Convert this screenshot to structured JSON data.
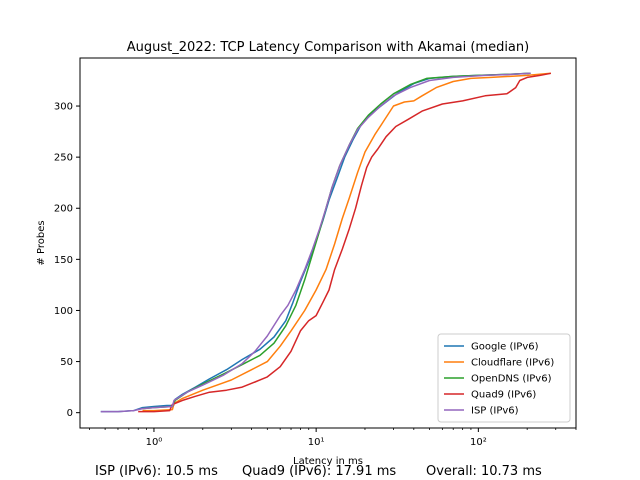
{
  "chart_data": {
    "type": "line",
    "title": "August_2022: TCP Latency Comparison with Akamai (median)",
    "xlabel": "Latency in ms",
    "ylabel": "# Probes",
    "x_scale": "log",
    "xlim": [
      0.35,
      400
    ],
    "ylim": [
      -15,
      347
    ],
    "x_ticks": [
      {
        "value": 1,
        "label": "10⁰"
      },
      {
        "value": 10,
        "label": "10¹"
      },
      {
        "value": 100,
        "label": "10²"
      }
    ],
    "y_ticks": [
      0,
      50,
      100,
      150,
      200,
      250,
      300
    ],
    "legend_position": "lower right",
    "grid": false,
    "series": [
      {
        "name": "Google (IPv6)",
        "color": "#1f77b4",
        "points": [
          [
            0.47,
            1
          ],
          [
            0.6,
            1
          ],
          [
            0.75,
            2
          ],
          [
            0.85,
            5
          ],
          [
            1,
            6
          ],
          [
            1.2,
            7
          ],
          [
            1.32,
            7
          ],
          [
            1.35,
            13
          ],
          [
            1.5,
            18
          ],
          [
            1.8,
            25
          ],
          [
            2.2,
            33
          ],
          [
            2.8,
            42
          ],
          [
            3.5,
            52
          ],
          [
            4.5,
            62
          ],
          [
            5.5,
            74
          ],
          [
            6.5,
            90
          ],
          [
            7.2,
            108
          ],
          [
            8,
            128
          ],
          [
            9,
            148
          ],
          [
            10,
            168
          ],
          [
            11,
            188
          ],
          [
            12,
            208
          ],
          [
            13.5,
            230
          ],
          [
            15,
            250
          ],
          [
            17,
            268
          ],
          [
            19,
            282
          ],
          [
            22,
            293
          ],
          [
            26,
            302
          ],
          [
            32,
            313
          ],
          [
            40,
            322
          ],
          [
            50,
            327
          ],
          [
            70,
            329
          ],
          [
            100,
            330
          ],
          [
            150,
            331
          ],
          [
            210,
            332
          ]
        ]
      },
      {
        "name": "Cloudflare (IPv6)",
        "color": "#ff7f0e",
        "points": [
          [
            0.85,
            2
          ],
          [
            1,
            2
          ],
          [
            1.3,
            3
          ],
          [
            1.33,
            9
          ],
          [
            1.5,
            14
          ],
          [
            2,
            22
          ],
          [
            3,
            32
          ],
          [
            4,
            42
          ],
          [
            5,
            50
          ],
          [
            6,
            65
          ],
          [
            7,
            80
          ],
          [
            8.5,
            100
          ],
          [
            10,
            120
          ],
          [
            11.5,
            140
          ],
          [
            13,
            165
          ],
          [
            14.5,
            190
          ],
          [
            16,
            210
          ],
          [
            18,
            235
          ],
          [
            20,
            255
          ],
          [
            23,
            272
          ],
          [
            26,
            285
          ],
          [
            30,
            300
          ],
          [
            35,
            304
          ],
          [
            40,
            305
          ],
          [
            45,
            310
          ],
          [
            55,
            318
          ],
          [
            70,
            324
          ],
          [
            90,
            327
          ],
          [
            120,
            328
          ],
          [
            200,
            330
          ],
          [
            280,
            332
          ]
        ]
      },
      {
        "name": "OpenDNS (IPv6)",
        "color": "#2ca02c",
        "points": [
          [
            0.85,
            4
          ],
          [
            1,
            5
          ],
          [
            1.3,
            6
          ],
          [
            1.35,
            12
          ],
          [
            1.6,
            20
          ],
          [
            2,
            28
          ],
          [
            2.7,
            38
          ],
          [
            3.5,
            47
          ],
          [
            4.5,
            56
          ],
          [
            5.5,
            68
          ],
          [
            6.5,
            85
          ],
          [
            7.5,
            105
          ],
          [
            8.5,
            130
          ],
          [
            9.5,
            155
          ],
          [
            10.5,
            178
          ],
          [
            11.5,
            200
          ],
          [
            12.5,
            220
          ],
          [
            14,
            242
          ],
          [
            16,
            262
          ],
          [
            18,
            278
          ],
          [
            21,
            291
          ],
          [
            25,
            302
          ],
          [
            30,
            312
          ],
          [
            38,
            321
          ],
          [
            48,
            327
          ],
          [
            70,
            329
          ],
          [
            100,
            330
          ],
          [
            150,
            331
          ],
          [
            210,
            332
          ]
        ]
      },
      {
        "name": "Quad9 (IPv6)",
        "color": "#d62728",
        "points": [
          [
            0.8,
            1
          ],
          [
            1,
            1
          ],
          [
            1.25,
            2
          ],
          [
            1.3,
            8
          ],
          [
            1.5,
            12
          ],
          [
            1.8,
            16
          ],
          [
            2.2,
            20
          ],
          [
            2.8,
            22
          ],
          [
            3.5,
            25
          ],
          [
            4.2,
            30
          ],
          [
            5,
            35
          ],
          [
            6,
            45
          ],
          [
            7,
            60
          ],
          [
            8,
            80
          ],
          [
            9,
            90
          ],
          [
            10,
            95
          ],
          [
            11,
            108
          ],
          [
            12,
            120
          ],
          [
            13,
            140
          ],
          [
            14.5,
            160
          ],
          [
            16,
            180
          ],
          [
            17.5,
            200
          ],
          [
            19,
            222
          ],
          [
            20.5,
            240
          ],
          [
            22,
            250
          ],
          [
            24,
            258
          ],
          [
            27,
            270
          ],
          [
            31,
            280
          ],
          [
            37,
            287
          ],
          [
            45,
            295
          ],
          [
            60,
            302
          ],
          [
            80,
            305
          ],
          [
            110,
            310
          ],
          [
            150,
            312
          ],
          [
            170,
            318
          ],
          [
            180,
            325
          ],
          [
            200,
            328
          ],
          [
            240,
            330
          ],
          [
            280,
            332
          ]
        ]
      },
      {
        "name": "ISP (IPv6)",
        "color": "#9467bd",
        "points": [
          [
            0.47,
            1
          ],
          [
            0.6,
            1
          ],
          [
            0.75,
            2
          ],
          [
            0.85,
            4
          ],
          [
            1,
            5
          ],
          [
            1.3,
            6
          ],
          [
            1.33,
            12
          ],
          [
            1.6,
            20
          ],
          [
            2,
            27
          ],
          [
            2.7,
            37
          ],
          [
            3.5,
            48
          ],
          [
            4.2,
            60
          ],
          [
            5,
            75
          ],
          [
            6,
            95
          ],
          [
            6.7,
            105
          ],
          [
            7.5,
            120
          ],
          [
            8.5,
            140
          ],
          [
            9.5,
            160
          ],
          [
            10.5,
            180
          ],
          [
            11.5,
            200
          ],
          [
            12.5,
            220
          ],
          [
            14,
            242
          ],
          [
            16,
            262
          ],
          [
            18,
            277
          ],
          [
            21,
            289
          ],
          [
            25,
            300
          ],
          [
            30,
            310
          ],
          [
            38,
            318
          ],
          [
            50,
            325
          ],
          [
            70,
            328
          ],
          [
            110,
            330
          ],
          [
            160,
            331
          ],
          [
            210,
            332
          ]
        ]
      }
    ]
  },
  "footer": {
    "isp": "ISP (IPv6): 10.5 ms",
    "quad9": "Quad9 (IPv6): 17.91 ms",
    "overall": "Overall: 10.73 ms"
  }
}
